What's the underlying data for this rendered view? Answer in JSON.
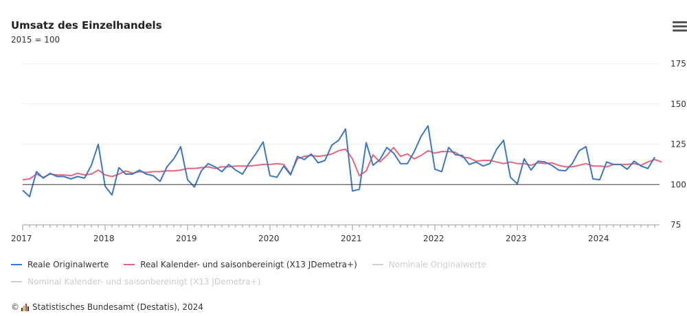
{
  "header": {
    "title": "Umsatz des Einzelhandels",
    "subtitle": "2015 = 100"
  },
  "icons": {
    "menu": "hamburger-menu-icon",
    "logo": "destatis-logo-icon"
  },
  "footer": {
    "copyright_symbol": "©",
    "text": "Statistisches Bundesamt (Destatis), 2024"
  },
  "colors": {
    "blue": "#3a76c4",
    "red": "#e8647a",
    "inactive": "#d0d0d0"
  },
  "chart_data": {
    "type": "line",
    "title": "Umsatz des Einzelhandels",
    "subtitle": "2015 = 100",
    "xlabel": "",
    "ylabel": "",
    "x_start": "2017-01",
    "x_ticks": [
      "2017",
      "2018",
      "2019",
      "2020",
      "2021",
      "2022",
      "2023",
      "2024"
    ],
    "y_ticks": [
      "75",
      "100",
      "125",
      "150",
      "175"
    ],
    "ylim": [
      75,
      175
    ],
    "reference_line": 100,
    "grid": "horizontal",
    "legend_position": "bottom",
    "series": [
      {
        "name": "Reale Originalwerte",
        "visible": true,
        "color": "#3a76c4",
        "values": [
          96.5,
          92.5,
          108,
          104,
          107,
          105,
          105,
          103.5,
          105,
          104,
          112,
          125,
          99,
          93.5,
          110.5,
          106.5,
          106.5,
          109,
          106.5,
          105.5,
          102,
          111,
          116,
          123.5,
          103,
          98.5,
          108.5,
          113,
          111,
          108,
          112.5,
          109,
          106.5,
          113.5,
          119.5,
          126.5,
          105.5,
          104.5,
          111.5,
          106,
          117.5,
          115.5,
          119,
          113.5,
          115,
          124.5,
          127.5,
          134.5,
          96,
          97,
          126,
          112,
          115.5,
          123,
          119.5,
          113,
          113,
          120.5,
          130,
          136.5,
          109.5,
          108,
          123,
          118.5,
          118,
          112.5,
          114,
          111.5,
          113,
          122,
          127.5,
          104.5,
          100.5,
          116,
          109,
          114.5,
          114,
          112,
          109,
          108.5,
          113,
          121,
          123.5,
          103.5,
          103,
          114,
          112.5,
          112.5,
          109.5,
          114.5,
          111.5,
          110,
          117
        ]
      },
      {
        "name": "Real Kalender- und saisonbereinigt (X13 JDemetra+)",
        "visible": true,
        "color": "#e8647a",
        "values": [
          103,
          103.5,
          106.5,
          104.5,
          106.5,
          106,
          106,
          105.5,
          107,
          106,
          106.5,
          109,
          106,
          105,
          106.5,
          108.5,
          107,
          108,
          107.5,
          108,
          108,
          108.5,
          108.5,
          109,
          110,
          110,
          110.5,
          111,
          110,
          111,
          111,
          111.5,
          111.5,
          111.5,
          112,
          112.5,
          112.5,
          113,
          112.5,
          106.5,
          116,
          117.5,
          118,
          117.5,
          118,
          119,
          121,
          122,
          116,
          105.5,
          108.5,
          118.5,
          114,
          118,
          123,
          117.5,
          119,
          116,
          118,
          121,
          119.5,
          120.5,
          120.5,
          120,
          117,
          116.5,
          114.5,
          115,
          115,
          114,
          113,
          114,
          113,
          113,
          112,
          113.5,
          113,
          113.5,
          112,
          111,
          111,
          112,
          113,
          111.5,
          111.5,
          111,
          112.5,
          112.5,
          112.5,
          113,
          112,
          114,
          115.5,
          114
        ]
      },
      {
        "name": "Nominale Originalwerte",
        "visible": false,
        "color": "#d0d0d0",
        "values": []
      },
      {
        "name": "Nominal Kalender- und saisonbereinigt (X13 JDemetra+)",
        "visible": false,
        "color": "#d0d0d0",
        "values": []
      }
    ]
  }
}
